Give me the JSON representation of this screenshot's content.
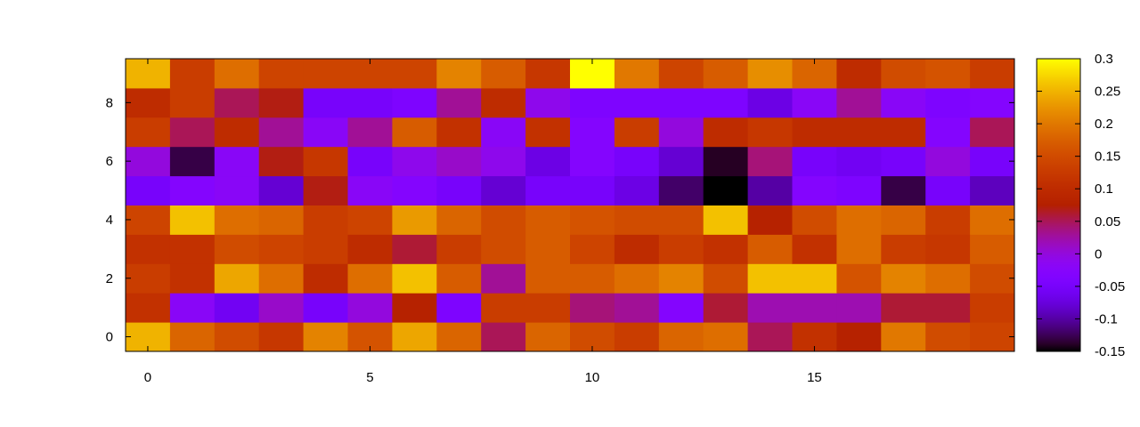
{
  "chart_data": {
    "type": "heatmap",
    "title": "",
    "xlabel": "",
    "ylabel": "",
    "x_tick_labels": [
      "0",
      "5",
      "10",
      "15"
    ],
    "y_tick_labels": [
      "0",
      "2",
      "4",
      "6",
      "8"
    ],
    "colorbar_tick_labels": [
      "0.3",
      "0.25",
      "0.2",
      "0.15",
      "0.1",
      "0.05",
      "0",
      "-0.05",
      "-0.1",
      "-0.15"
    ],
    "x_range": [
      -0.5,
      19.5
    ],
    "y_range": [
      -0.5,
      9.5
    ],
    "x_ticks": [
      0,
      5,
      10,
      15
    ],
    "y_ticks": [
      0,
      2,
      4,
      6,
      8
    ],
    "color_range": [
      -0.15,
      0.3
    ],
    "colorbar_ticks": [
      0.3,
      0.25,
      0.2,
      0.15,
      0.1,
      0.05,
      0,
      -0.05,
      -0.1,
      -0.15
    ],
    "palette": "gnuplot-pm3d",
    "grid": false,
    "legend": "colorbar-right",
    "rows": [
      [
        0.25,
        0.18,
        0.15,
        0.12,
        0.21,
        0.16,
        0.24,
        0.18,
        0.05,
        0.18,
        0.15,
        0.13,
        0.18,
        0.19,
        0.05,
        0.11,
        0.08,
        0.2,
        0.15,
        0.14
      ],
      [
        0.11,
        -0.02,
        -0.06,
        0.01,
        -0.05,
        0.0,
        0.08,
        -0.04,
        0.13,
        0.13,
        0.04,
        0.03,
        -0.03,
        0.06,
        0.02,
        0.02,
        0.02,
        0.06,
        0.06,
        0.13
      ],
      [
        0.13,
        0.11,
        0.24,
        0.19,
        0.1,
        0.19,
        0.26,
        0.17,
        0.03,
        0.17,
        0.17,
        0.19,
        0.21,
        0.15,
        0.26,
        0.26,
        0.16,
        0.21,
        0.19,
        0.15
      ],
      [
        0.11,
        0.11,
        0.15,
        0.14,
        0.13,
        0.1,
        0.06,
        0.13,
        0.15,
        0.17,
        0.14,
        0.1,
        0.13,
        0.11,
        0.17,
        0.11,
        0.19,
        0.13,
        0.12,
        0.17
      ],
      [
        0.14,
        0.26,
        0.19,
        0.18,
        0.13,
        0.14,
        0.23,
        0.18,
        0.15,
        0.17,
        0.16,
        0.15,
        0.15,
        0.26,
        0.08,
        0.15,
        0.19,
        0.18,
        0.13,
        0.19
      ],
      [
        -0.05,
        -0.03,
        -0.02,
        -0.08,
        0.07,
        -0.02,
        -0.03,
        -0.05,
        -0.08,
        -0.05,
        -0.05,
        -0.07,
        -0.12,
        -0.15,
        -0.1,
        -0.03,
        -0.04,
        -0.13,
        -0.05,
        -0.09
      ],
      [
        0.0,
        -0.13,
        -0.02,
        0.07,
        0.12,
        -0.05,
        -0.01,
        0.01,
        -0.01,
        -0.07,
        -0.03,
        -0.05,
        -0.08,
        -0.14,
        0.04,
        -0.05,
        -0.06,
        -0.05,
        0.0,
        -0.05
      ],
      [
        0.13,
        0.05,
        0.1,
        0.03,
        -0.02,
        0.03,
        0.17,
        0.11,
        -0.02,
        0.11,
        -0.03,
        0.13,
        0.0,
        0.1,
        0.12,
        0.1,
        0.1,
        0.1,
        -0.03,
        0.05
      ],
      [
        0.1,
        0.13,
        0.05,
        0.07,
        -0.05,
        -0.05,
        -0.04,
        0.03,
        0.1,
        -0.01,
        -0.04,
        -0.04,
        -0.04,
        -0.04,
        -0.07,
        -0.02,
        0.03,
        -0.02,
        -0.04,
        -0.03
      ],
      [
        0.25,
        0.13,
        0.19,
        0.14,
        0.14,
        0.14,
        0.14,
        0.21,
        0.17,
        0.12,
        0.3,
        0.2,
        0.14,
        0.17,
        0.22,
        0.18,
        0.1,
        0.15,
        0.16,
        0.13
      ]
    ]
  }
}
